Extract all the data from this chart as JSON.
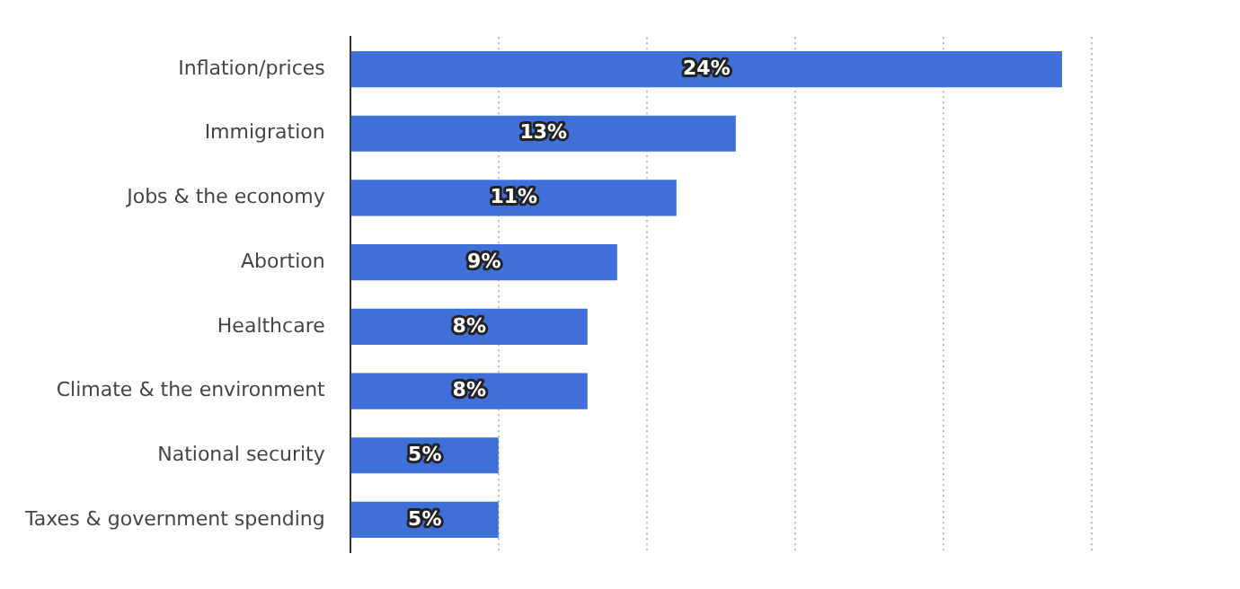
{
  "chart_data": {
    "type": "bar",
    "orientation": "horizontal",
    "categories": [
      "Inflation/prices",
      "Immigration",
      "Jobs & the economy",
      "Abortion",
      "Healthcare",
      "Climate & the environment",
      "National security",
      "Taxes & government spending"
    ],
    "values": [
      24,
      13,
      11,
      9,
      8,
      8,
      5,
      5
    ],
    "value_labels": [
      "24%",
      "13%",
      "11%",
      "9%",
      "8%",
      "8%",
      "5%",
      "5%"
    ],
    "color": "#3f6fd8",
    "xticks": [
      {
        "value": 0,
        "label": null
      },
      {
        "value": 5,
        "label": null
      },
      {
        "value": 10,
        "label": null
      },
      {
        "value": 15,
        "label": null
      },
      {
        "value": 20,
        "label": null
      },
      {
        "value": 25,
        "label": null
      }
    ],
    "grid": "x",
    "tick_labels": "y",
    "legend": false
  }
}
